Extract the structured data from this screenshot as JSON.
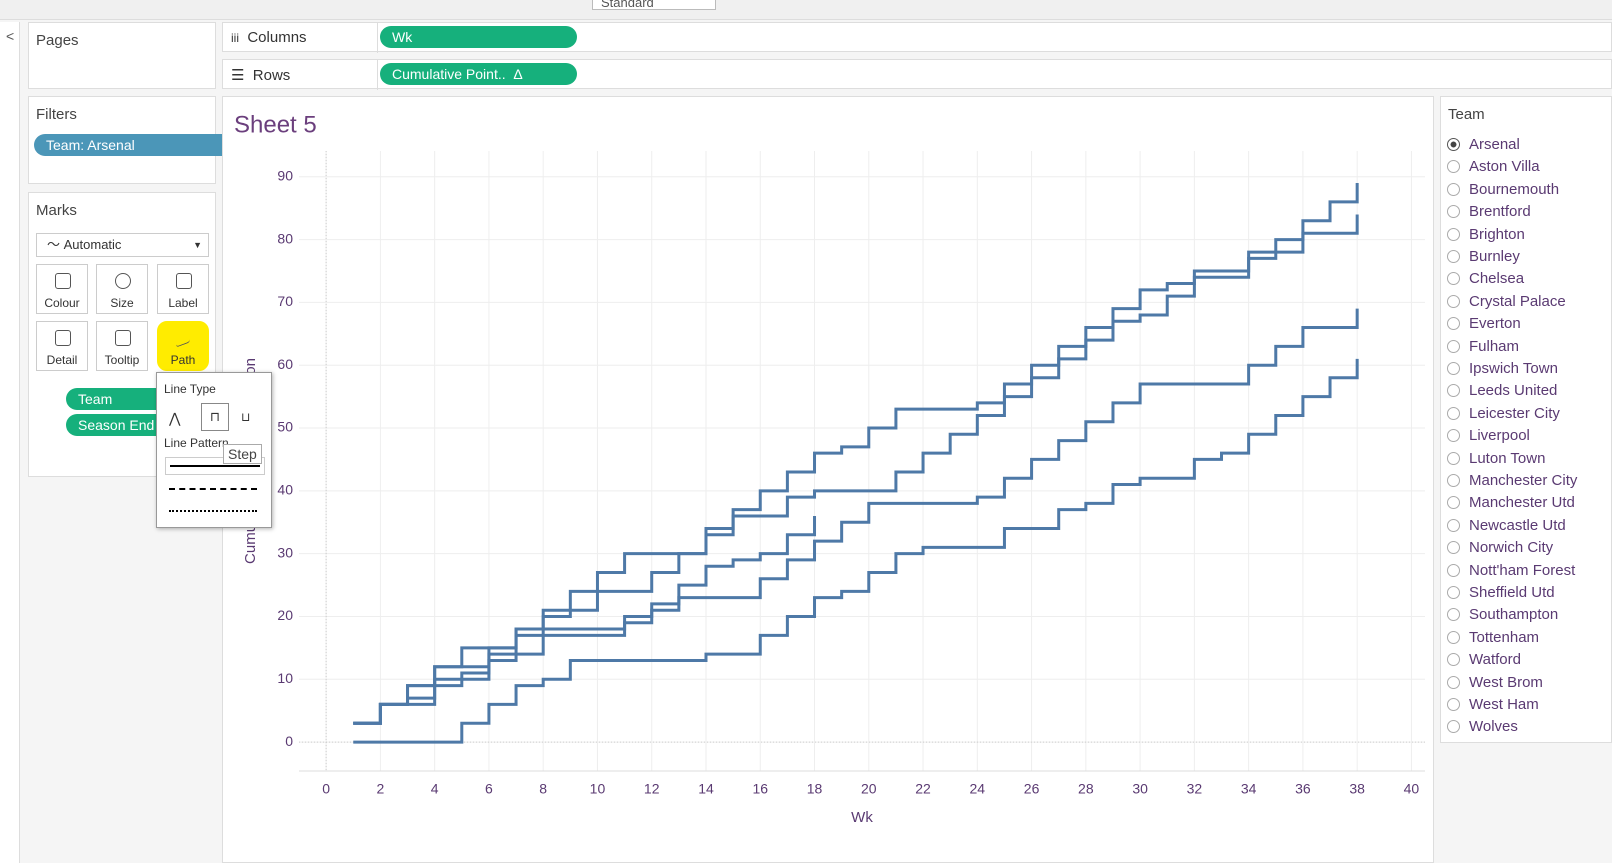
{
  "toolbar": {
    "fit": "Standard"
  },
  "pages": {
    "title": "Pages"
  },
  "columns": {
    "label": "Columns",
    "pill": "Wk"
  },
  "rows": {
    "label": "Rows",
    "pill": "Cumulative Point..",
    "pill_icon": "Δ"
  },
  "filters": {
    "title": "Filters",
    "pill": "Team: Arsenal"
  },
  "marks": {
    "title": "Marks",
    "type": "Automatic",
    "buttons": [
      "Colour",
      "Size",
      "Label",
      "Detail",
      "Tooltip",
      "Path"
    ],
    "fields": [
      "Team",
      "Season End"
    ]
  },
  "popup": {
    "line_type": "Line Type",
    "line_pattern": "Line Pattern",
    "tooltip": "Step"
  },
  "legend": {
    "title": "Team",
    "selected": 0,
    "items": [
      "Arsenal",
      "Aston Villa",
      "Bournemouth",
      "Brentford",
      "Brighton",
      "Burnley",
      "Chelsea",
      "Crystal Palace",
      "Everton",
      "Fulham",
      "Ipswich Town",
      "Leeds United",
      "Leicester City",
      "Liverpool",
      "Luton Town",
      "Manchester City",
      "Manchester Utd",
      "Newcastle Utd",
      "Norwich City",
      "Nott'ham Forest",
      "Sheffield Utd",
      "Southampton",
      "Tottenham",
      "Watford",
      "West Brom",
      "West Ham",
      "Wolves"
    ]
  },
  "chart_data": {
    "type": "step",
    "title": "Sheet 5",
    "x_label": "Wk",
    "y_label": "Cumulative Points Comparison",
    "x": [
      1,
      2,
      3,
      4,
      5,
      6,
      7,
      8,
      9,
      10,
      11,
      12,
      13,
      14,
      15,
      16,
      17,
      18,
      19,
      20,
      21,
      22,
      23,
      24,
      25,
      26,
      27,
      28,
      29,
      30,
      31,
      32,
      33,
      34,
      35,
      36,
      37,
      38
    ],
    "series": [
      {
        "color": "#4e79a7",
        "values": [
          3,
          6,
          9,
          12,
          15,
          15,
          18,
          21,
          24,
          27,
          30,
          30,
          30,
          33,
          36,
          36,
          39,
          40,
          40,
          40,
          43,
          46,
          49,
          52,
          55,
          58,
          61,
          64,
          67,
          68,
          71,
          74,
          74,
          77,
          80,
          83,
          86,
          89
        ]
      },
      {
        "color": "#4e79a7",
        "values": [
          3,
          6,
          7,
          10,
          11,
          14,
          17,
          20,
          21,
          24,
          24,
          27,
          30,
          34,
          37,
          40,
          43,
          46,
          47,
          50,
          53,
          53,
          53,
          54,
          57,
          60,
          63,
          66,
          69,
          72,
          73,
          75,
          75,
          78,
          78,
          81,
          81,
          84
        ]
      },
      {
        "color": "#4e79a7",
        "values": [
          3,
          6,
          9,
          12,
          12,
          15,
          18,
          18,
          18,
          18,
          19,
          22,
          25,
          28,
          29,
          30,
          33,
          36,
          null,
          null,
          null,
          null,
          null,
          null,
          null,
          null,
          null,
          null,
          null,
          null,
          null,
          null,
          null,
          null,
          null,
          null,
          null,
          null
        ]
      },
      {
        "color": "#4e79a7",
        "values": [
          3,
          6,
          6,
          9,
          10,
          13,
          14,
          17,
          17,
          17,
          20,
          21,
          23,
          23,
          23,
          26,
          29,
          32,
          35,
          38,
          38,
          38,
          38,
          39,
          42,
          45,
          48,
          51,
          54,
          57,
          57,
          57,
          57,
          60,
          63,
          66,
          66,
          69
        ]
      },
      {
        "color": "#4e79a7",
        "values": [
          0,
          0,
          0,
          0,
          3,
          6,
          9,
          10,
          13,
          13,
          13,
          13,
          13,
          14,
          14,
          17,
          20,
          23,
          24,
          27,
          30,
          31,
          31,
          31,
          34,
          34,
          37,
          38,
          41,
          42,
          42,
          45,
          46,
          49,
          52,
          55,
          58,
          61
        ]
      }
    ],
    "xlim": [
      -1,
      40.5
    ],
    "ylim": [
      -4.6,
      94.1
    ],
    "xticks": [
      0,
      2,
      4,
      6,
      8,
      10,
      12,
      14,
      16,
      18,
      20,
      22,
      24,
      26,
      28,
      30,
      32,
      34,
      36,
      38,
      40
    ],
    "yticks": [
      0,
      10,
      20,
      30,
      40,
      50,
      60,
      70,
      80,
      90
    ],
    "grid": true
  }
}
